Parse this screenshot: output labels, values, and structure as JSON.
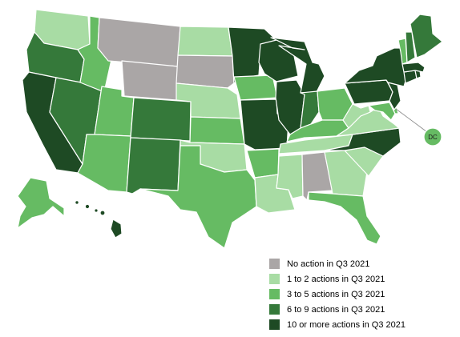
{
  "map": {
    "colors": {
      "none": "#aaa6a6",
      "low": "#a8dca4",
      "mid": "#66bb63",
      "high": "#35793a",
      "top": "#1e4a24"
    },
    "states": {
      "WA": "low",
      "OR": "high",
      "CA": "top",
      "NV": "high",
      "ID": "mid",
      "MT": "none",
      "WY": "none",
      "UT": "mid",
      "AZ": "mid",
      "CO": "high",
      "NM": "high",
      "ND": "low",
      "SD": "none",
      "NE": "low",
      "KS": "mid",
      "OK": "low",
      "TX": "mid",
      "MN": "top",
      "IA": "mid",
      "MO": "top",
      "AR": "mid",
      "LA": "low",
      "WI": "top",
      "IL": "top",
      "MI": "top",
      "IN": "high",
      "OH": "mid",
      "KY": "mid",
      "TN": "low",
      "MS": "low",
      "AL": "none",
      "GA": "low",
      "FL": "mid",
      "SC": "low",
      "NC": "top",
      "VA": "low",
      "WV": "low",
      "MD": "mid",
      "DE": "mid",
      "PA": "top",
      "NJ": "top",
      "NY": "top",
      "CT": "top",
      "RI": "top",
      "MA": "top",
      "VT": "mid",
      "NH": "high",
      "ME": "high",
      "AK": "mid",
      "HI": "top",
      "DC": "mid"
    },
    "dc_label": "DC"
  },
  "legend": [
    {
      "label": "No action in Q3 2021",
      "color": "#aaa6a6"
    },
    {
      "label": "1 to 2 actions in Q3 2021",
      "color": "#a8dca4"
    },
    {
      "label": "3 to 5 actions in Q3 2021",
      "color": "#66bb63"
    },
    {
      "label": "6 to 9 actions in Q3 2021",
      "color": "#35793a"
    },
    {
      "label": "10 or more actions in Q3 2021",
      "color": "#1e4a24"
    }
  ]
}
